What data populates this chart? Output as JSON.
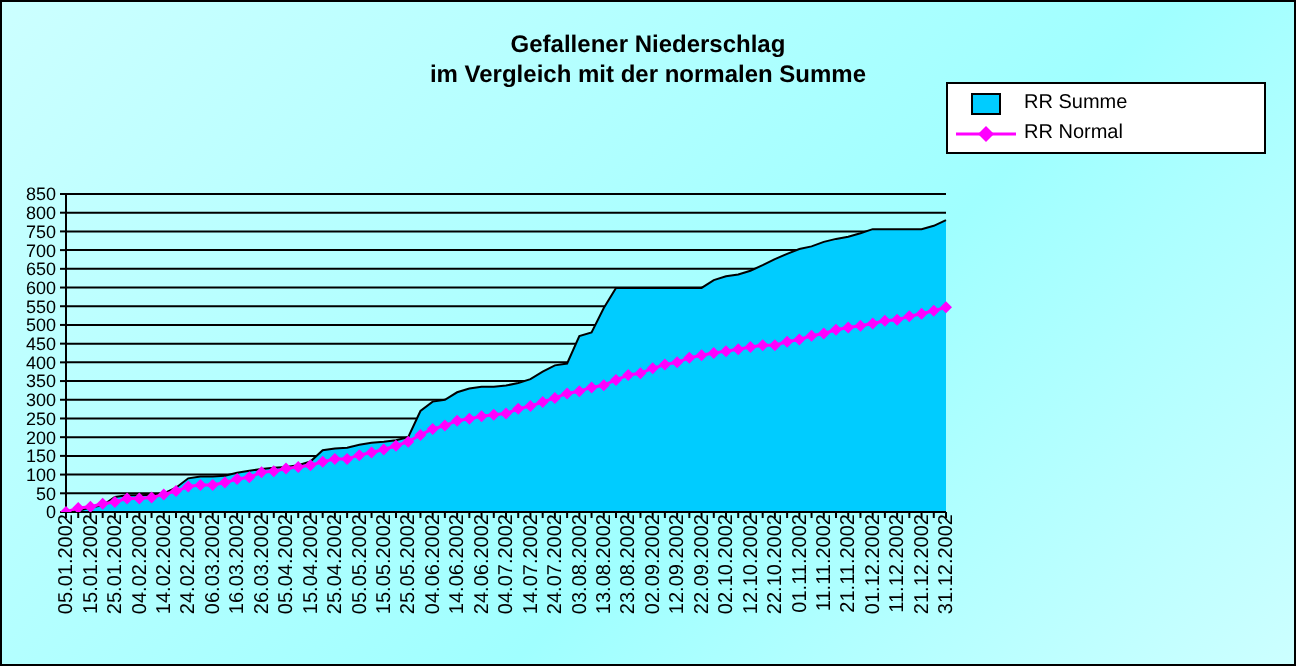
{
  "chart_data": {
    "type": "area",
    "title": "Gefallener Niederschlag\nim Vergleich mit der normalen Summe",
    "categories": [
      "05.01.2002",
      null,
      "15.01.2002",
      null,
      "25.01.2002",
      null,
      "04.02.2002",
      null,
      "14.02.2002",
      null,
      "24.02.2002",
      null,
      "06.03.2002",
      null,
      "16.03.2002",
      null,
      "26.03.2002",
      null,
      "05.04.2002",
      null,
      "15.04.2002",
      null,
      "25.04.2002",
      null,
      "05.05.2002",
      null,
      "15.05.2002",
      null,
      "25.05.2002",
      null,
      "04.06.2002",
      null,
      "14.06.2002",
      null,
      "24.06.2002",
      null,
      "04.07.2002",
      null,
      "14.07.2002",
      null,
      "24.07.2002",
      null,
      "03.08.2002",
      null,
      "13.08.2002",
      null,
      "23.08.2002",
      null,
      "02.09.2002",
      null,
      "12.09.2002",
      null,
      "22.09.2002",
      null,
      "02.10.2002",
      null,
      "12.10.2002",
      null,
      "22.10.2002",
      null,
      "01.11.2002",
      null,
      "11.11.2002",
      null,
      "21.11.2002",
      null,
      "01.12.2002",
      null,
      "11.12.2002",
      null,
      "21.12.2002",
      null,
      "31.12.2002"
    ],
    "series": [
      {
        "name": "RR Summe",
        "color": "#00ccff",
        "values": [
          0,
          3,
          12,
          18,
          40,
          45,
          45,
          46,
          50,
          65,
          90,
          95,
          95,
          97,
          105,
          110,
          115,
          118,
          120,
          125,
          135,
          165,
          170,
          172,
          180,
          185,
          188,
          192,
          200,
          270,
          295,
          300,
          320,
          330,
          335,
          335,
          338,
          345,
          355,
          375,
          392,
          397,
          470,
          480,
          545,
          599,
          599,
          599,
          599,
          599,
          599,
          599,
          599,
          620,
          630,
          635,
          645,
          660,
          676,
          690,
          703,
          710,
          722,
          730,
          736,
          745,
          756,
          756,
          756,
          756,
          756,
          765,
          780
        ]
      },
      {
        "name": "RR Normal",
        "type": "line",
        "color": "#ff00ff",
        "marker": "diamond",
        "values": [
          0,
          11,
          14,
          22,
          27,
          36,
          36,
          39,
          47,
          56,
          68,
          72,
          72,
          79,
          88,
          93,
          106,
          109,
          116,
          120,
          125,
          134,
          142,
          142,
          152,
          159,
          167,
          177,
          188,
          206,
          222,
          231,
          244,
          249,
          256,
          260,
          263,
          276,
          283,
          294,
          305,
          317,
          323,
          333,
          339,
          353,
          366,
          371,
          384,
          394,
          400,
          412,
          419,
          425,
          430,
          435,
          441,
          446,
          446,
          455,
          461,
          471,
          477,
          487,
          493,
          498,
          504,
          511,
          514,
          523,
          530,
          538,
          547
        ]
      }
    ],
    "ylim": [
      0,
      850
    ],
    "yticks": [
      0,
      50,
      100,
      150,
      200,
      250,
      300,
      350,
      400,
      450,
      500,
      550,
      600,
      650,
      700,
      750,
      800,
      850
    ],
    "grid": "y",
    "legend": "top right"
  }
}
